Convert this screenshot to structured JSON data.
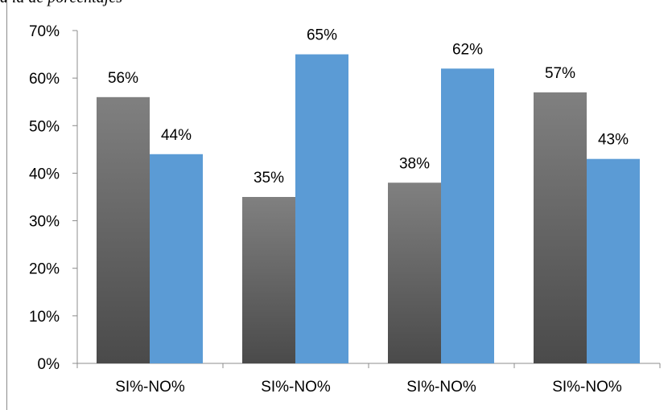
{
  "header": {
    "clipped_text": "a la de porcentajes"
  },
  "colors": {
    "si_top": "#808080",
    "si_bottom": "#4a4a4a",
    "no": "#5b9bd5",
    "axis": "#8c8c8c"
  },
  "chart_data": {
    "type": "bar",
    "categories": [
      "SI%-NO%",
      "SI%-NO%",
      "SI%-NO%",
      "SI%-NO%"
    ],
    "series": [
      {
        "values": [
          56,
          35,
          38,
          57
        ],
        "labels": [
          "56%",
          "35%",
          "38%",
          "57%"
        ]
      },
      {
        "values": [
          44,
          65,
          62,
          43
        ],
        "labels": [
          "44%",
          "65%",
          "62%",
          "43%"
        ]
      }
    ],
    "ylim": [
      0,
      70
    ],
    "yticks": [
      "0%",
      "10%",
      "20%",
      "30%",
      "40%",
      "50%",
      "60%",
      "70%"
    ],
    "grid": false,
    "legend": "none"
  }
}
